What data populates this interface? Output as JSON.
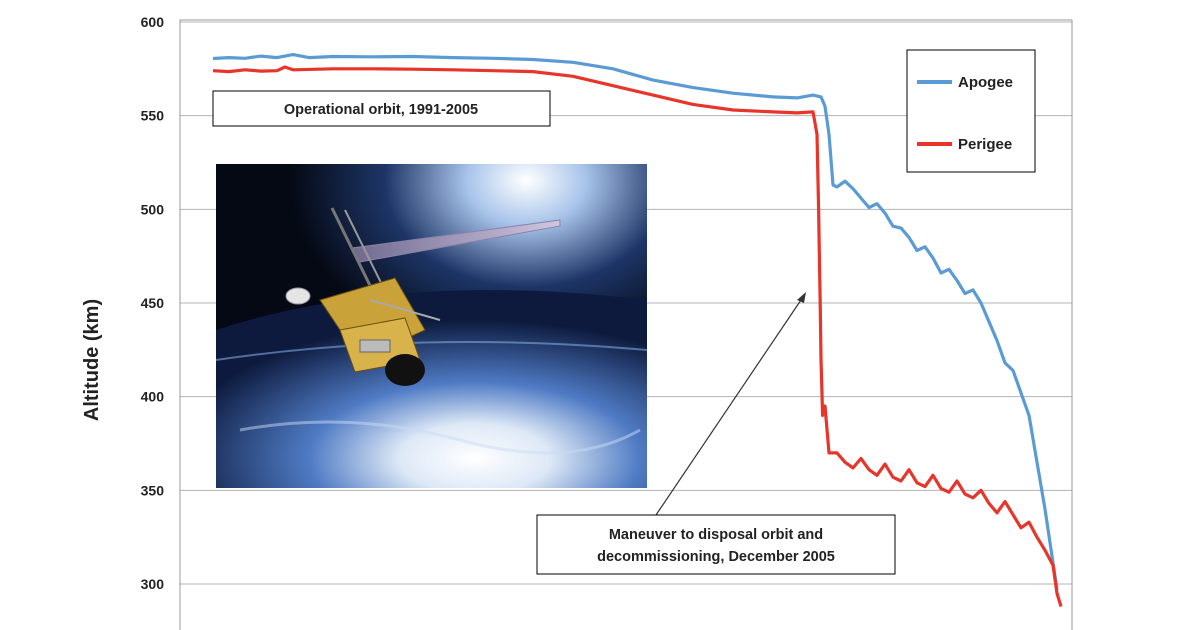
{
  "chart_data": {
    "type": "line",
    "xlabel": "",
    "ylabel": "Altitude  (km)",
    "ylim": [
      290,
      600
    ],
    "yticks": [
      300,
      350,
      400,
      450,
      500,
      550,
      600
    ],
    "grid": true,
    "legend_position": "top-right",
    "series": [
      {
        "name": "Apogee",
        "color": "#5b9bd5",
        "points": [
          [
            0.0,
            580.5
          ],
          [
            0.02,
            581.0
          ],
          [
            0.04,
            580.6
          ],
          [
            0.06,
            581.8
          ],
          [
            0.08,
            581.0
          ],
          [
            0.1,
            582.6
          ],
          [
            0.12,
            581.0
          ],
          [
            0.15,
            581.6
          ],
          [
            0.2,
            581.4
          ],
          [
            0.25,
            581.6
          ],
          [
            0.3,
            581.0
          ],
          [
            0.35,
            580.6
          ],
          [
            0.4,
            580.0
          ],
          [
            0.45,
            578.5
          ],
          [
            0.5,
            575.0
          ],
          [
            0.55,
            569.0
          ],
          [
            0.6,
            565.0
          ],
          [
            0.65,
            562.0
          ],
          [
            0.7,
            560.0
          ],
          [
            0.73,
            559.5
          ],
          [
            0.75,
            561.0
          ],
          [
            0.76,
            560.0
          ],
          [
            0.765,
            555.0
          ],
          [
            0.77,
            540.0
          ],
          [
            0.775,
            513.0
          ],
          [
            0.78,
            512.0
          ],
          [
            0.79,
            515.0
          ],
          [
            0.8,
            511.0
          ],
          [
            0.81,
            506.0
          ],
          [
            0.82,
            501.0
          ],
          [
            0.83,
            503.0
          ],
          [
            0.84,
            498.0
          ],
          [
            0.85,
            491.0
          ],
          [
            0.86,
            490.0
          ],
          [
            0.87,
            485.0
          ],
          [
            0.88,
            478.0
          ],
          [
            0.89,
            480.0
          ],
          [
            0.9,
            474.0
          ],
          [
            0.91,
            466.0
          ],
          [
            0.92,
            468.0
          ],
          [
            0.93,
            462.0
          ],
          [
            0.94,
            455.0
          ],
          [
            0.95,
            457.0
          ],
          [
            0.96,
            450.0
          ],
          [
            0.97,
            440.0
          ],
          [
            0.98,
            430.0
          ],
          [
            0.99,
            418.0
          ],
          [
            1.0,
            414.0
          ],
          [
            1.02,
            390.0
          ],
          [
            1.04,
            340.0
          ],
          [
            1.055,
            297.0
          ]
        ]
      },
      {
        "name": "Perigee",
        "color": "#e8352b",
        "points": [
          [
            0.0,
            574.0
          ],
          [
            0.02,
            573.5
          ],
          [
            0.04,
            574.5
          ],
          [
            0.06,
            573.8
          ],
          [
            0.08,
            574.0
          ],
          [
            0.09,
            576.0
          ],
          [
            0.1,
            574.5
          ],
          [
            0.15,
            575.0
          ],
          [
            0.2,
            575.0
          ],
          [
            0.25,
            574.8
          ],
          [
            0.3,
            574.5
          ],
          [
            0.35,
            574.0
          ],
          [
            0.4,
            573.5
          ],
          [
            0.45,
            571.0
          ],
          [
            0.5,
            566.0
          ],
          [
            0.55,
            561.0
          ],
          [
            0.6,
            556.0
          ],
          [
            0.65,
            553.0
          ],
          [
            0.7,
            552.0
          ],
          [
            0.73,
            551.5
          ],
          [
            0.75,
            552.0
          ],
          [
            0.755,
            540.0
          ],
          [
            0.757,
            500.0
          ],
          [
            0.758,
            474.0
          ],
          [
            0.759,
            450.0
          ],
          [
            0.76,
            420.0
          ],
          [
            0.762,
            390.0
          ],
          [
            0.765,
            395.0
          ],
          [
            0.767,
            385.0
          ],
          [
            0.77,
            370.0
          ],
          [
            0.78,
            370.0
          ],
          [
            0.79,
            365.0
          ],
          [
            0.8,
            362.0
          ],
          [
            0.81,
            367.0
          ],
          [
            0.82,
            361.0
          ],
          [
            0.83,
            358.0
          ],
          [
            0.84,
            364.0
          ],
          [
            0.85,
            357.0
          ],
          [
            0.86,
            355.0
          ],
          [
            0.87,
            361.0
          ],
          [
            0.88,
            354.0
          ],
          [
            0.89,
            352.0
          ],
          [
            0.9,
            358.0
          ],
          [
            0.91,
            351.0
          ],
          [
            0.92,
            349.0
          ],
          [
            0.93,
            355.0
          ],
          [
            0.94,
            348.0
          ],
          [
            0.95,
            346.0
          ],
          [
            0.96,
            350.0
          ],
          [
            0.97,
            343.0
          ],
          [
            0.98,
            338.0
          ],
          [
            0.99,
            344.0
          ],
          [
            1.0,
            337.0
          ],
          [
            1.01,
            330.0
          ],
          [
            1.02,
            333.0
          ],
          [
            1.03,
            325.0
          ],
          [
            1.04,
            318.0
          ],
          [
            1.05,
            310.0
          ],
          [
            1.055,
            295.0
          ],
          [
            1.06,
            288.0
          ]
        ]
      }
    ],
    "annotations": [
      {
        "id": "operational",
        "lines": [
          "Operational orbit, 1991-2005"
        ]
      },
      {
        "id": "maneuver",
        "lines": [
          "Maneuver to disposal orbit and",
          "decommissioning, December 2005"
        ]
      }
    ]
  }
}
